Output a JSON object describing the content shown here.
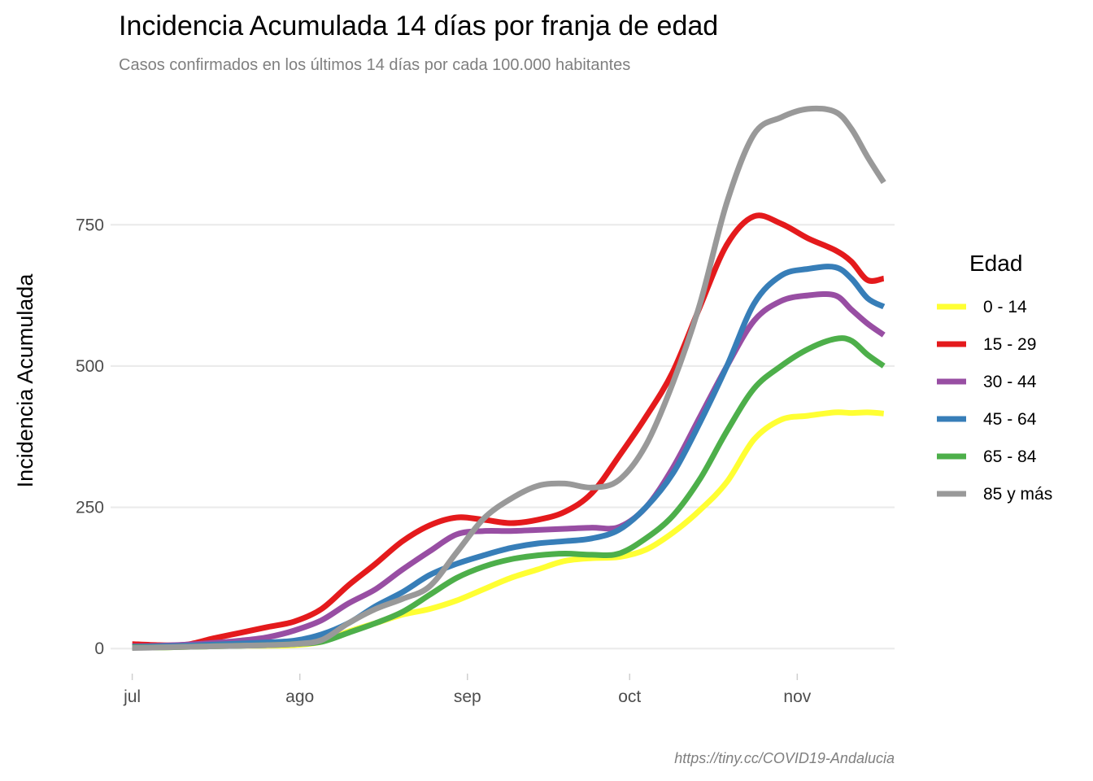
{
  "chart_data": {
    "type": "line",
    "title": "Incidencia Acumulada 14 días por franja de edad",
    "subtitle": "Casos confirmados en los últimos 14 días por cada 100.000 habitantes",
    "xlabel": "",
    "ylabel": "Incidencia Acumulada",
    "caption": "https://tiny.cc/COVID19-Andalucia",
    "legend_title": "Edad",
    "legend_position": "right",
    "grid": "horizontal",
    "x_type": "date",
    "xlim": [
      "2020-06-27",
      "2020-11-19"
    ],
    "ylim": [
      -40,
      975
    ],
    "y_ticks": [
      0,
      250,
      500,
      750
    ],
    "x_ticks": [
      {
        "date": "2020-07-01",
        "label": "jul"
      },
      {
        "date": "2020-08-01",
        "label": "ago"
      },
      {
        "date": "2020-09-01",
        "label": "sep"
      },
      {
        "date": "2020-10-01",
        "label": "oct"
      },
      {
        "date": "2020-11-01",
        "label": "nov"
      }
    ],
    "x": [
      "2020-07-01",
      "2020-07-06",
      "2020-07-11",
      "2020-07-16",
      "2020-07-21",
      "2020-07-26",
      "2020-07-31",
      "2020-08-05",
      "2020-08-10",
      "2020-08-15",
      "2020-08-20",
      "2020-08-25",
      "2020-08-30",
      "2020-09-04",
      "2020-09-09",
      "2020-09-14",
      "2020-09-19",
      "2020-09-24",
      "2020-09-29",
      "2020-10-04",
      "2020-10-09",
      "2020-10-14",
      "2020-10-19",
      "2020-10-24",
      "2020-10-29",
      "2020-11-03",
      "2020-11-08",
      "2020-11-11",
      "2020-11-14",
      "2020-11-17"
    ],
    "series": [
      {
        "name": "0 - 14",
        "color": "#ffff33",
        "values": [
          2,
          2,
          3,
          4,
          5,
          5,
          6,
          12,
          30,
          45,
          60,
          70,
          85,
          105,
          125,
          140,
          155,
          160,
          162,
          175,
          205,
          245,
          295,
          370,
          405,
          412,
          418,
          417,
          418,
          416
        ]
      },
      {
        "name": "15 - 29",
        "color": "#e41a1c",
        "values": [
          8,
          6,
          7,
          18,
          28,
          38,
          48,
          70,
          112,
          150,
          190,
          218,
          232,
          228,
          222,
          228,
          242,
          275,
          340,
          410,
          490,
          605,
          715,
          765,
          752,
          726,
          705,
          685,
          652,
          655
        ]
      },
      {
        "name": "30 - 44",
        "color": "#984ea3",
        "values": [
          4,
          5,
          7,
          10,
          14,
          20,
          32,
          50,
          80,
          105,
          140,
          172,
          202,
          208,
          208,
          210,
          212,
          214,
          215,
          250,
          320,
          410,
          500,
          580,
          615,
          625,
          625,
          600,
          575,
          555
        ]
      },
      {
        "name": "45 - 64",
        "color": "#377eb8",
        "values": [
          3,
          4,
          5,
          7,
          9,
          11,
          14,
          25,
          45,
          75,
          100,
          130,
          150,
          165,
          178,
          186,
          190,
          195,
          210,
          250,
          310,
          400,
          500,
          610,
          660,
          672,
          675,
          655,
          620,
          605
        ]
      },
      {
        "name": "65 - 84",
        "color": "#4daf4a",
        "values": [
          2,
          2,
          3,
          4,
          5,
          6,
          8,
          12,
          28,
          45,
          65,
          95,
          125,
          145,
          158,
          165,
          168,
          166,
          168,
          195,
          235,
          300,
          385,
          460,
          500,
          530,
          548,
          545,
          520,
          500
        ]
      },
      {
        "name": "85 y más",
        "color": "#999999",
        "values": [
          1,
          2,
          3,
          4,
          5,
          6,
          8,
          15,
          45,
          70,
          88,
          110,
          170,
          230,
          265,
          288,
          292,
          285,
          298,
          360,
          470,
          610,
          790,
          910,
          940,
          955,
          950,
          920,
          870,
          825
        ]
      }
    ]
  }
}
